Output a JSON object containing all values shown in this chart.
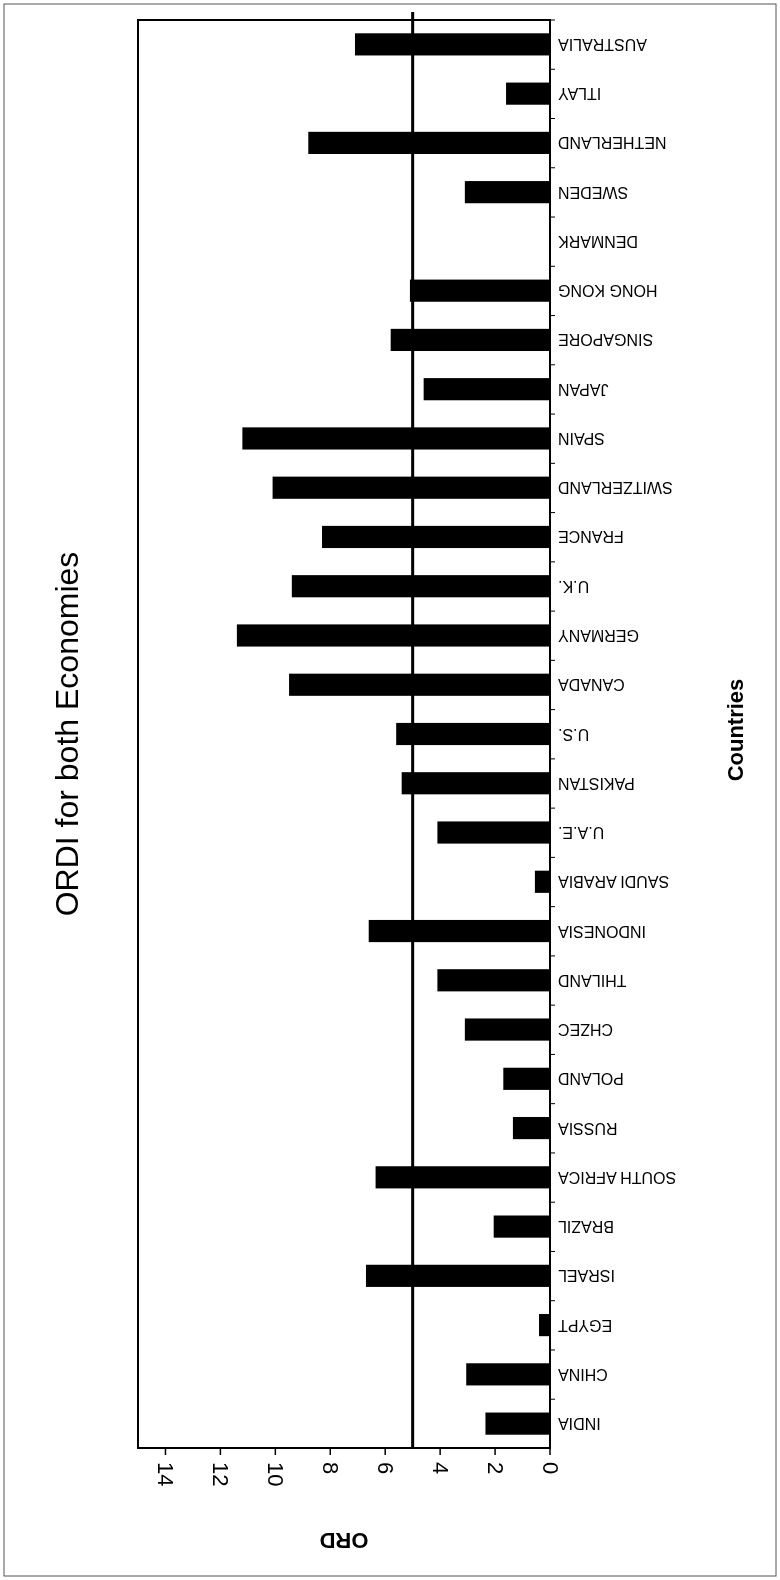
{
  "chart_data": {
    "type": "bar",
    "orientation": "horizontal",
    "title": "ORDI for both Economies",
    "xlabel": "ORD",
    "ylabel": "Countries",
    "categories": [
      "AUSTRALIA",
      "ITLAY",
      "NETHERLAND",
      "SWEDEN",
      "DENMARK",
      "HONG KONG",
      "SINGAPORE",
      "JAPAN",
      "SPAIN",
      "SWITZERLAND",
      "FRANCE",
      "U.K.",
      "GERMANY",
      "CANADA",
      "U.S.",
      "PAKISTAN",
      "U.A.E.",
      "SAUDI ARABIA",
      "INDONESIA",
      "THILAND",
      "CHZEC",
      "POLAND",
      "RUSSIA",
      "SOUTH AFRICA",
      "BRAZIL",
      "ISRAEL",
      "EGYPT",
      "CHINA",
      "INDIA"
    ],
    "values": [
      7.1,
      1.6,
      8.8,
      3.1,
      0,
      5.1,
      5.8,
      4.6,
      11.2,
      10.1,
      8.3,
      9.4,
      11.4,
      9.5,
      5.6,
      5.4,
      4.1,
      0.55,
      6.6,
      4.1,
      3.1,
      1.7,
      1.35,
      6.35,
      2.05,
      6.7,
      0.4,
      3.05,
      2.35
    ],
    "color": "#000000",
    "xlim": [
      15,
      0
    ],
    "xticks": [
      0,
      2,
      4,
      6,
      8,
      10,
      12,
      14
    ],
    "ref_lines": [
      {
        "axis": "x",
        "value": 5,
        "color": "#000000"
      }
    ]
  }
}
